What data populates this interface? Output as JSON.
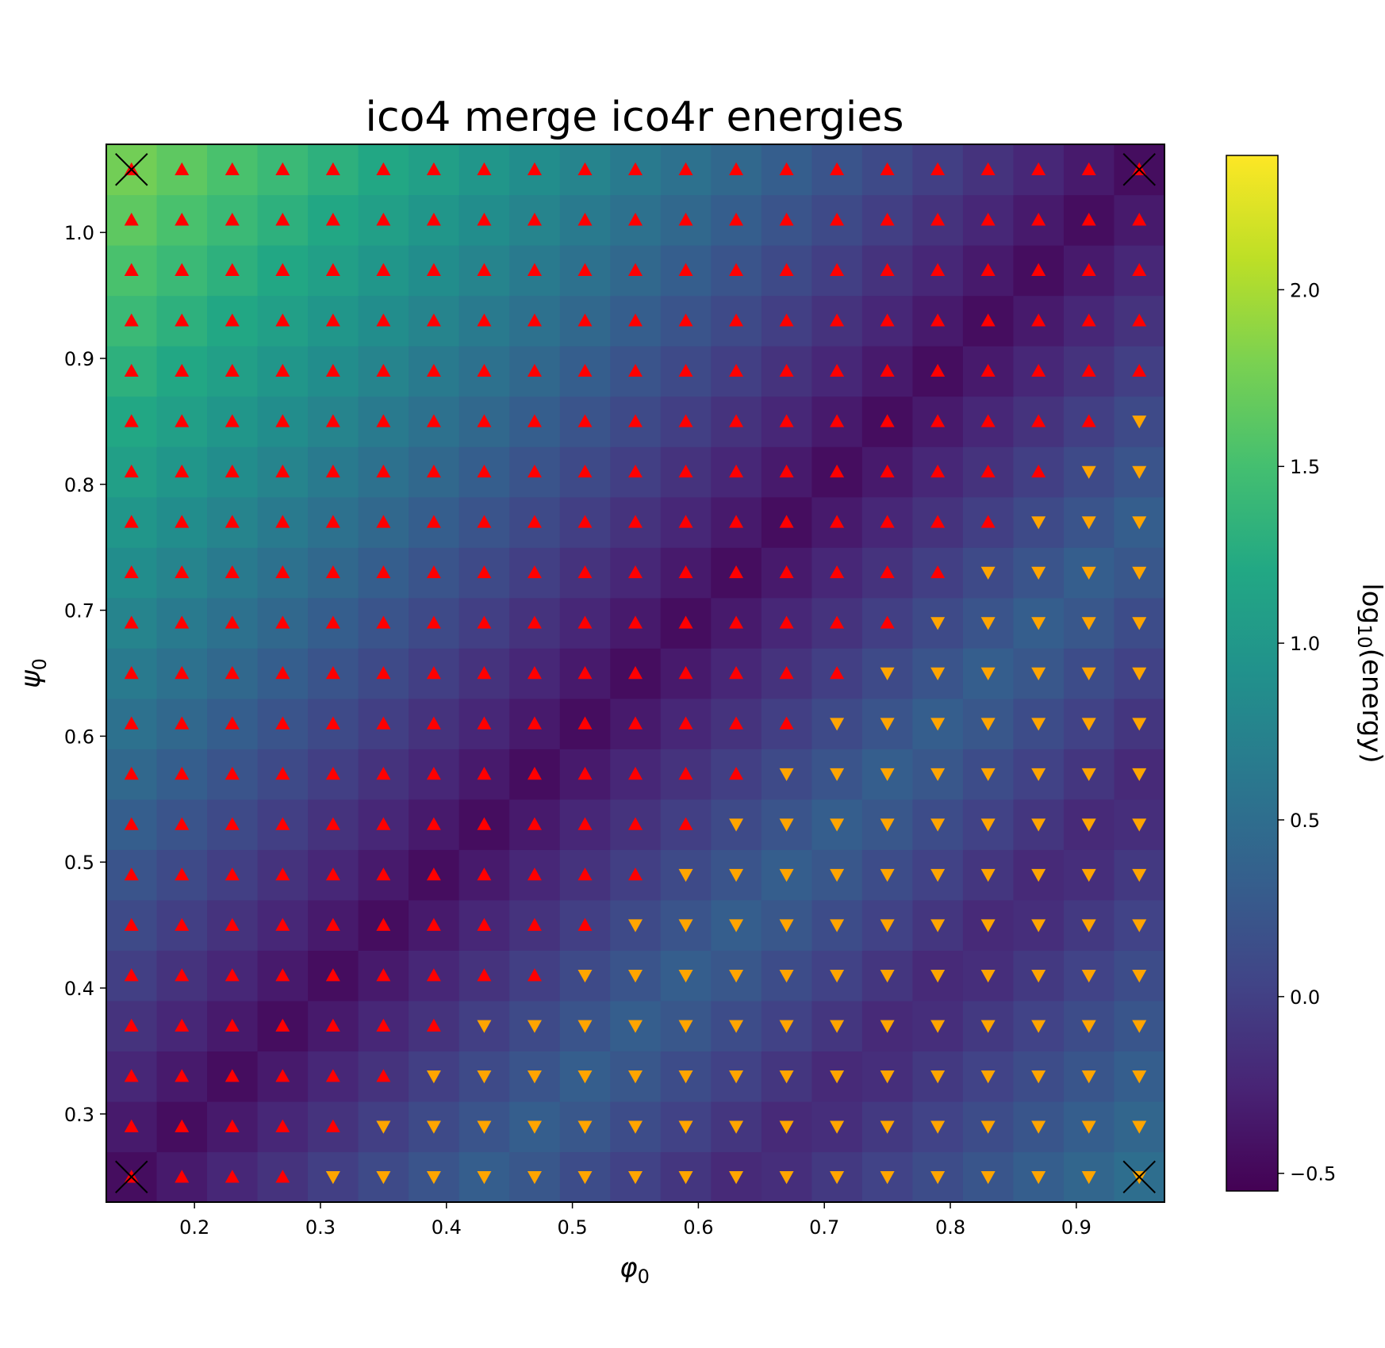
{
  "chart_data": {
    "type": "heatmap",
    "title": "ico4 merge ico4r energies",
    "xlabel": "φ",
    "xlabel_sub": "0",
    "ylabel": "ψ",
    "ylabel_sub": "0",
    "colorbar_label_prefix": "log",
    "colorbar_label_sub": "10",
    "colorbar_label_suffix": "(energy)",
    "colormap": "viridis",
    "clim": [
      -0.55,
      2.38
    ],
    "xlim": [
      0.13,
      0.97
    ],
    "ylim": [
      0.23,
      1.07
    ],
    "x_ticks": [
      0.2,
      0.3,
      0.4,
      0.5,
      0.6,
      0.7,
      0.8,
      0.9
    ],
    "x_tick_labels": [
      "0.2",
      "0.3",
      "0.4",
      "0.5",
      "0.6",
      "0.7",
      "0.8",
      "0.9"
    ],
    "y_ticks": [
      0.3,
      0.4,
      0.5,
      0.6,
      0.7,
      0.8,
      0.9,
      1.0
    ],
    "y_tick_labels": [
      "0.3",
      "0.4",
      "0.5",
      "0.6",
      "0.7",
      "0.8",
      "0.9",
      "1.0"
    ],
    "cbar_ticks": [
      -0.5,
      0.0,
      0.5,
      1.0,
      1.5,
      2.0
    ],
    "cbar_tick_labels": [
      "−0.5",
      "0.0",
      "0.5",
      "1.0",
      "1.5",
      "2.0"
    ],
    "x": [
      0.15,
      0.19,
      0.23,
      0.27,
      0.31,
      0.35,
      0.39,
      0.43,
      0.47,
      0.51,
      0.55,
      0.59,
      0.63,
      0.67,
      0.71,
      0.75,
      0.79,
      0.83,
      0.87,
      0.91,
      0.95
    ],
    "y": [
      0.25,
      0.29,
      0.33,
      0.37,
      0.41,
      0.45,
      0.49,
      0.53,
      0.57,
      0.61,
      0.65,
      0.69,
      0.73,
      0.77,
      0.81,
      0.85,
      0.89,
      0.93,
      0.97,
      1.01,
      1.05
    ],
    "marker_boundary": [
      4,
      5,
      6,
      7,
      9,
      10,
      11,
      12,
      13,
      14,
      15,
      16,
      17,
      18,
      19,
      20,
      21,
      21,
      21,
      21,
      21
    ],
    "marker_legend": {
      "up": "red triangle-up",
      "down": "orange triangle-down",
      "corner": "black x"
    },
    "corner_markers": [
      [
        0.15,
        0.25
      ],
      [
        0.95,
        0.25
      ],
      [
        0.15,
        1.05
      ],
      [
        0.95,
        1.05
      ]
    ],
    "model": {
      "diag_slope": 1.0,
      "diag_offset": 0.1,
      "valley_value": -0.45,
      "valley_slope": 5.0,
      "tl_max": 2.15,
      "far_slope": 4.0,
      "second_valley_offset": 0.55
    }
  },
  "colors": {
    "up_marker": "#ff0000",
    "down_marker": "#ffa500",
    "corner_marker": "#000000"
  }
}
